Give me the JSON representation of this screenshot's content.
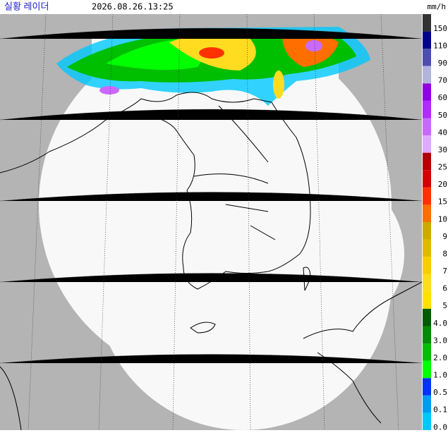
{
  "header": {
    "title": "실황 레이더",
    "timestamp": "2026.08.26.13:25"
  },
  "legend": {
    "unit": "mm/h",
    "items": [
      {
        "label": "150",
        "color": "#333333"
      },
      {
        "label": "110",
        "color": "#000390"
      },
      {
        "label": "90",
        "color": "#4c4eb1"
      },
      {
        "label": "70",
        "color": "#b3b4de"
      },
      {
        "label": "60",
        "color": "#9300e4"
      },
      {
        "label": "50",
        "color": "#b329ff"
      },
      {
        "label": "40",
        "color": "#c969ff"
      },
      {
        "label": "30",
        "color": "#e0a9ff"
      },
      {
        "label": "25",
        "color": "#b40000"
      },
      {
        "label": "20",
        "color": "#d20000"
      },
      {
        "label": "15",
        "color": "#ff3200"
      },
      {
        "label": "10",
        "color": "#ff6e00"
      },
      {
        "label": "9",
        "color": "#ccaa00"
      },
      {
        "label": "8",
        "color": "#e0b900"
      },
      {
        "label": "7",
        "color": "#f9cd00"
      },
      {
        "label": "6",
        "color": "#ffdc1f"
      },
      {
        "label": "5",
        "color": "#ffe100"
      },
      {
        "label": "4.0",
        "color": "#005a00"
      },
      {
        "label": "3.0",
        "color": "#008c00"
      },
      {
        "label": "2.0",
        "color": "#00be00"
      },
      {
        "label": "1.0",
        "color": "#00ff00"
      },
      {
        "label": "0.5",
        "color": "#0033f5"
      },
      {
        "label": "0.1",
        "color": "#009bf5"
      },
      {
        "label": "0.0",
        "color": "#00c8ff"
      }
    ]
  }
}
